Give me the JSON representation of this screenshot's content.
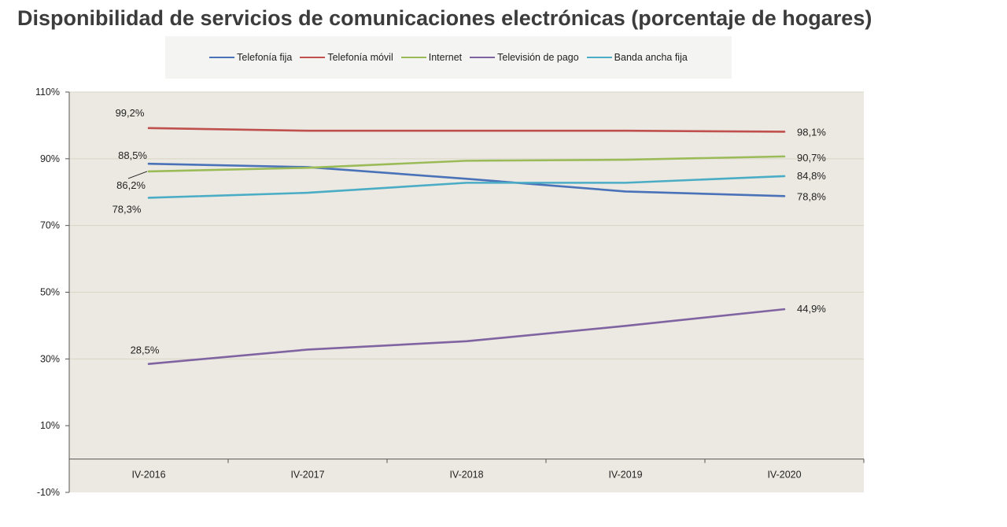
{
  "chart_data": {
    "type": "line",
    "title": "Disponibilidad de servicios de comunicaciones electrónicas (porcentaje de hogares)",
    "categories": [
      "IV-2016",
      "IV-2017",
      "IV-2018",
      "IV-2019",
      "IV-2020"
    ],
    "ylim": [
      -10,
      110
    ],
    "yticks": [
      -10,
      10,
      30,
      50,
      70,
      90,
      110
    ],
    "ytick_labels": [
      "-10%",
      "10%",
      "30%",
      "50%",
      "70%",
      "90%",
      "110%"
    ],
    "grid": true,
    "legend_position": "top",
    "series": [
      {
        "name": "Telefonía fija",
        "color": "#4a72b8",
        "values": [
          88.5,
          87.5,
          84.0,
          80.2,
          78.8
        ],
        "labels": {
          "start": "88,5%",
          "end": "78,8%"
        }
      },
      {
        "name": "Telefonía móvil",
        "color": "#c0504d",
        "values": [
          99.2,
          98.4,
          98.4,
          98.4,
          98.1
        ],
        "labels": {
          "start": "99,2%",
          "end": "98,1%"
        }
      },
      {
        "name": "Internet",
        "color": "#9bbb59",
        "values": [
          86.2,
          87.3,
          89.4,
          89.7,
          90.7
        ],
        "labels": {
          "start": "86,2%",
          "end": "90,7%"
        }
      },
      {
        "name": "Televisión de pago",
        "color": "#8064a2",
        "values": [
          28.5,
          32.8,
          35.3,
          39.9,
          44.9
        ],
        "labels": {
          "start": "28,5%",
          "end": "44,9%"
        }
      },
      {
        "name": "Banda ancha fija",
        "color": "#4bacc6",
        "values": [
          78.3,
          79.8,
          82.8,
          82.8,
          84.8
        ],
        "labels": {
          "start": "78,3%",
          "end": "84,8%"
        }
      }
    ]
  }
}
